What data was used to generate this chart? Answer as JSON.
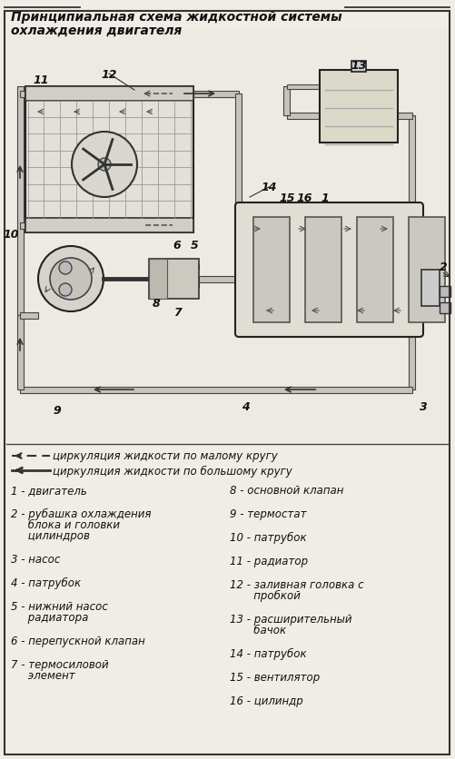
{
  "title_line1": "Принципиальная схема жидкостной системы",
  "title_line2": "охлаждения двигателя",
  "bg_color": "#f0ede6",
  "tc": "#111111",
  "legend1": "циркуляция жидкости по малому кругу",
  "legend2": "циркуляция жидкости по большому кругу",
  "items_left": [
    "1 - двигатель",
    "2 - рубашка охлаждения\n     блока и головки\n     цилиндров",
    "3 - насос",
    "4 - патрубок",
    "5 - нижний насос\n     радиатора",
    "6 - перепускной клапан",
    "7 - термосиловой\n     элемент"
  ],
  "items_right": [
    "8 - основной клапан",
    "9 - термостат",
    "10 - патрубок",
    "11 - радиатор",
    "12 - заливная головка с\n       пробкой",
    "13 - расширительный\n       бачок",
    "14 - патрубок",
    "15 - вентилятор",
    "16 - цилиндр"
  ]
}
